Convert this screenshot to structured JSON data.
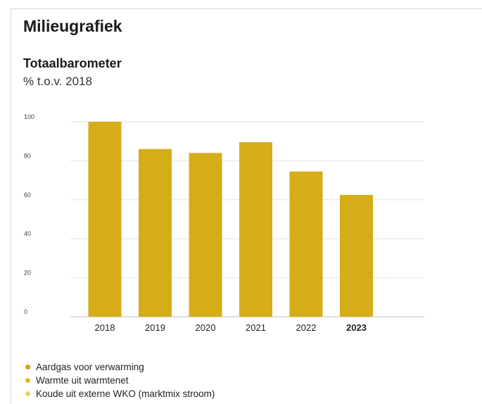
{
  "page_title": "Milieugrafiek",
  "colors": {
    "bar": "#d6ac18",
    "grid": "#e4e4e4",
    "baseline": "#bdbdbd",
    "tick_text": "#444444"
  },
  "chart_data": {
    "type": "bar",
    "title": "Totaalbarometer",
    "subtitle": "% t.o.v. 2018",
    "categories": [
      "2018",
      "2019",
      "2020",
      "2021",
      "2022",
      "2023"
    ],
    "highlighted_category": "2023",
    "series": [
      {
        "values": [
          100,
          86,
          84,
          89.5,
          74.5,
          62.5
        ]
      }
    ],
    "ylim": [
      0,
      100
    ],
    "yticks": [
      0,
      20,
      40,
      60,
      80,
      100
    ],
    "xlabel": "",
    "ylabel": "",
    "grid": true,
    "legend_position": "bottom-left",
    "legend": [
      {
        "label": "Aardgas voor verwarming",
        "color": "#d1a312"
      },
      {
        "label": "Warmte uit warmtenet",
        "color": "#e3b821"
      },
      {
        "label": "Koude uit externe WKO (marktmix stroom)",
        "color": "#efd266"
      }
    ]
  }
}
